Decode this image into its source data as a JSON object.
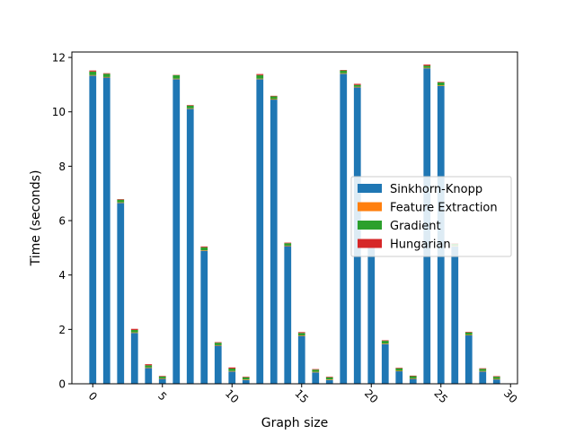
{
  "chart_data": {
    "type": "bar",
    "stacked": true,
    "title": "",
    "xlabel": "Graph size",
    "ylabel": "Time (seconds)",
    "xlim": [
      -1.5,
      30.5
    ],
    "ylim": [
      0,
      12.2
    ],
    "xticks": [
      0,
      5,
      10,
      15,
      20,
      25,
      30
    ],
    "xtick_labels": [
      "0",
      "5",
      "10",
      "15",
      "20",
      "25",
      "30"
    ],
    "xtick_rotation": 45,
    "yticks": [
      0,
      2,
      4,
      6,
      8,
      10,
      12
    ],
    "ytick_labels": [
      "0",
      "2",
      "4",
      "6",
      "8",
      "10",
      "12"
    ],
    "grid": false,
    "legend_position": "center-right",
    "x": [
      0,
      1,
      2,
      3,
      4,
      5,
      6,
      7,
      8,
      9,
      10,
      11,
      12,
      13,
      14,
      15,
      16,
      17,
      18,
      19,
      20,
      21,
      22,
      23,
      24,
      25,
      26,
      27,
      28,
      29
    ],
    "series": [
      {
        "name": "Sinkhorn-Knopp",
        "color": "#1f77b4",
        "values": [
          11.33,
          11.26,
          6.65,
          1.87,
          0.58,
          0.18,
          11.2,
          10.11,
          4.89,
          1.4,
          0.45,
          0.14,
          11.2,
          10.45,
          5.06,
          1.76,
          0.42,
          0.14,
          11.4,
          10.9,
          5.05,
          1.46,
          0.46,
          0.18,
          11.6,
          10.95,
          5.05,
          1.78,
          0.45,
          0.16
        ]
      },
      {
        "name": "Feature Extraction",
        "color": "#ff7f0e",
        "values": [
          0.02,
          0.02,
          0.02,
          0.02,
          0.02,
          0.02,
          0.02,
          0.02,
          0.02,
          0.02,
          0.02,
          0.02,
          0.02,
          0.02,
          0.02,
          0.02,
          0.02,
          0.02,
          0.02,
          0.02,
          0.02,
          0.02,
          0.02,
          0.02,
          0.02,
          0.02,
          0.02,
          0.02,
          0.02,
          0.02
        ]
      },
      {
        "name": "Gradient",
        "color": "#2ca02c",
        "values": [
          0.13,
          0.12,
          0.1,
          0.09,
          0.08,
          0.07,
          0.13,
          0.1,
          0.11,
          0.09,
          0.09,
          0.08,
          0.13,
          0.1,
          0.09,
          0.09,
          0.08,
          0.08,
          0.1,
          0.07,
          0.08,
          0.1,
          0.09,
          0.08,
          0.08,
          0.11,
          0.08,
          0.09,
          0.08,
          0.08
        ]
      },
      {
        "name": "Hungarian",
        "color": "#d62728",
        "values": [
          0.04,
          0.02,
          0.02,
          0.04,
          0.04,
          0.02,
          0.01,
          0.02,
          0.03,
          0.02,
          0.04,
          0.02,
          0.04,
          0.02,
          0.02,
          0.03,
          0.02,
          0.02,
          0.02,
          0.04,
          0.02,
          0.02,
          0.02,
          0.02,
          0.04,
          0.02,
          0.02,
          0.02,
          0.02,
          0.02
        ]
      }
    ]
  }
}
